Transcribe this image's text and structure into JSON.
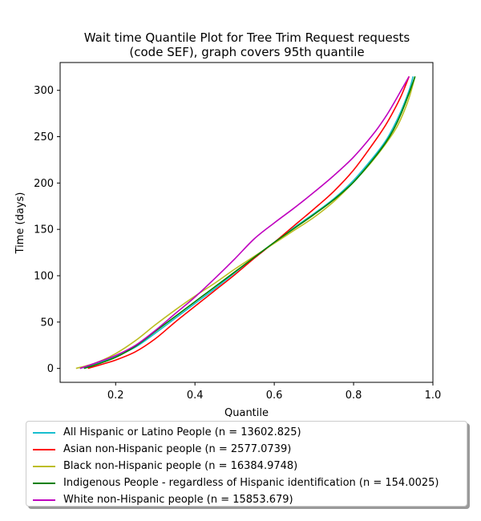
{
  "chart_data": {
    "type": "line",
    "title": "Wait time Quantile Plot for Tree Trim Request  requests\n(code SEF), graph covers 95th quantile",
    "xlabel": "Quantile",
    "ylabel": "Time (days)",
    "xlim": [
      0.06,
      1.0
    ],
    "ylim": [
      -15,
      330
    ],
    "xticks": [
      0.2,
      0.4,
      0.6,
      0.8,
      1.0
    ],
    "xtick_labels": [
      "0.2",
      "0.4",
      "0.6",
      "0.8",
      "1.0"
    ],
    "yticks": [
      0,
      50,
      100,
      150,
      200,
      250,
      300
    ],
    "ytick_labels": [
      "0",
      "50",
      "100",
      "150",
      "200",
      "250",
      "300"
    ],
    "grid": false,
    "legend_position": "below",
    "series": [
      {
        "name": "All Hispanic or Latino People (n = 13602.825)",
        "color": "#17becf",
        "x": [
          0.11,
          0.15,
          0.2,
          0.25,
          0.3,
          0.35,
          0.4,
          0.45,
          0.5,
          0.55,
          0.6,
          0.65,
          0.7,
          0.75,
          0.8,
          0.85,
          0.88,
          0.9,
          0.92,
          0.94,
          0.95
        ],
        "y": [
          0,
          5,
          13,
          23,
          38,
          54,
          70,
          86,
          103,
          120,
          136,
          152,
          167,
          183,
          203,
          228,
          245,
          260,
          278,
          300,
          315
        ]
      },
      {
        "name": "Asian non-Hispanic people (n = 2577.0739)",
        "color": "#ff0000",
        "x": [
          0.13,
          0.17,
          0.2,
          0.25,
          0.3,
          0.35,
          0.4,
          0.45,
          0.5,
          0.55,
          0.6,
          0.65,
          0.7,
          0.75,
          0.8,
          0.85,
          0.88,
          0.9,
          0.92,
          0.94
        ],
        "y": [
          0,
          5,
          9,
          18,
          32,
          50,
          67,
          84,
          101,
          119,
          136,
          154,
          172,
          191,
          214,
          243,
          262,
          277,
          294,
          315
        ]
      },
      {
        "name": "Black non-Hispanic people (n = 16384.9748)",
        "color": "#bcbd22",
        "x": [
          0.1,
          0.15,
          0.2,
          0.25,
          0.3,
          0.35,
          0.4,
          0.45,
          0.5,
          0.55,
          0.6,
          0.65,
          0.7,
          0.75,
          0.8,
          0.85,
          0.9,
          0.92,
          0.94,
          0.955
        ],
        "y": [
          0,
          6,
          16,
          30,
          47,
          63,
          78,
          92,
          107,
          121,
          135,
          149,
          163,
          180,
          201,
          225,
          254,
          270,
          292,
          315
        ]
      },
      {
        "name": "Indigenous People - regardless of Hispanic identification (n = 154.0025)",
        "color": "#008000",
        "x": [
          0.12,
          0.15,
          0.2,
          0.25,
          0.3,
          0.35,
          0.4,
          0.45,
          0.5,
          0.55,
          0.6,
          0.65,
          0.7,
          0.75,
          0.8,
          0.85,
          0.88,
          0.9,
          0.92,
          0.94,
          0.955
        ],
        "y": [
          0,
          4,
          12,
          24,
          40,
          56,
          72,
          88,
          104,
          120,
          136,
          151,
          166,
          182,
          201,
          226,
          243,
          257,
          275,
          297,
          315
        ]
      },
      {
        "name": "White non-Hispanic people (n = 15853.679)",
        "color": "#bf00bf",
        "x": [
          0.11,
          0.15,
          0.2,
          0.25,
          0.3,
          0.35,
          0.4,
          0.45,
          0.5,
          0.55,
          0.6,
          0.65,
          0.7,
          0.75,
          0.8,
          0.85,
          0.88,
          0.9,
          0.92,
          0.94
        ],
        "y": [
          0,
          6,
          14,
          25,
          41,
          59,
          77,
          97,
          118,
          140,
          157,
          173,
          190,
          208,
          228,
          253,
          271,
          285,
          300,
          315
        ]
      }
    ]
  }
}
